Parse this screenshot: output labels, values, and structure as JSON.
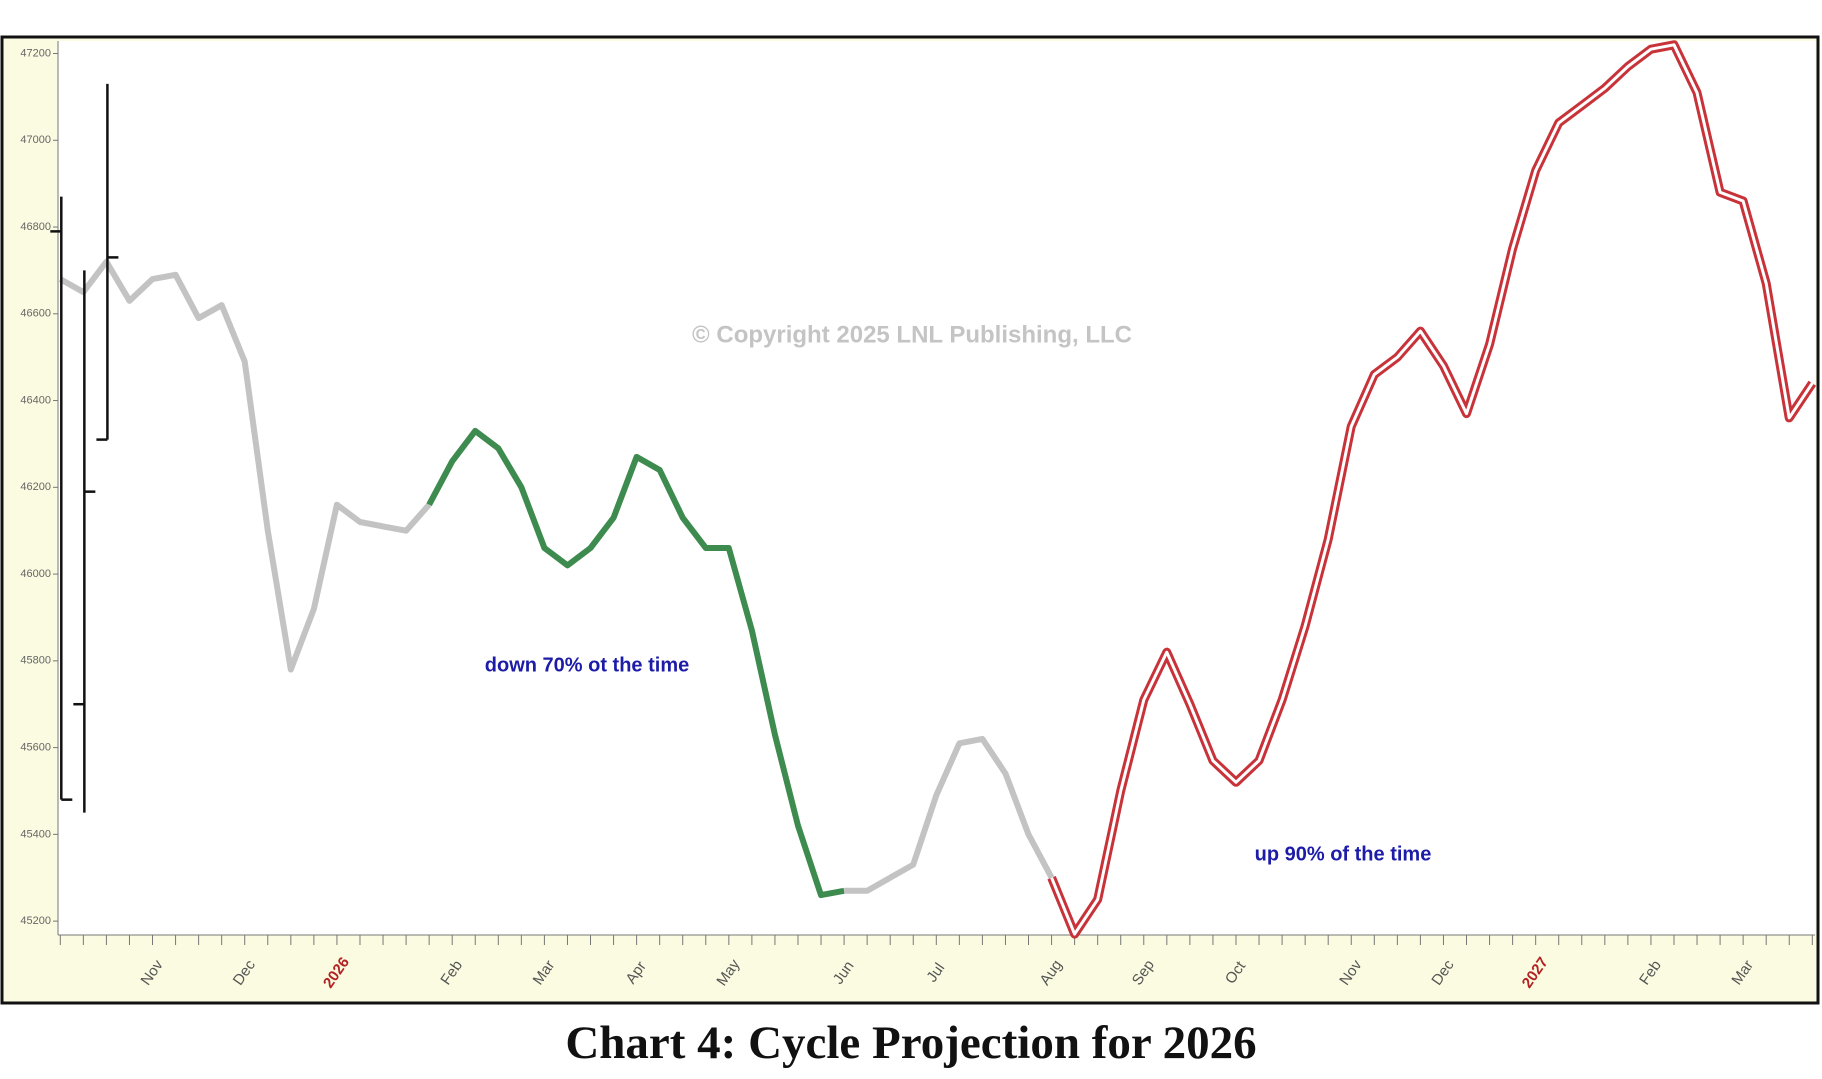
{
  "chart_data": {
    "type": "line",
    "watermark": "© Copyright 2025 LNL Publishing, LLC",
    "annotations": [
      "down 70% ot the time",
      "up 90% of the time"
    ],
    "caption": "Chart 4: Cycle Projection for 2026",
    "categories": [
      null,
      null,
      null,
      null,
      "Nov",
      null,
      null,
      null,
      "Dec",
      null,
      null,
      null,
      "2026",
      null,
      null,
      null,
      null,
      "Feb",
      null,
      null,
      null,
      "Mar",
      null,
      null,
      null,
      "Apr",
      null,
      null,
      null,
      "May",
      null,
      null,
      null,
      null,
      "Jun",
      null,
      null,
      null,
      "Jul",
      null,
      null,
      null,
      null,
      "Aug",
      null,
      null,
      null,
      "Sep",
      null,
      null,
      null,
      "Oct",
      null,
      null,
      null,
      null,
      "Nov",
      null,
      null,
      null,
      "Dec",
      null,
      null,
      null,
      "2027",
      null,
      null,
      null,
      null,
      "Feb",
      null,
      null,
      null,
      "Mar",
      null,
      null,
      null
    ],
    "series": [
      {
        "color": "#c3c3c3",
        "values": [
          46680,
          46650,
          46720,
          46630,
          46680,
          46690,
          46590,
          46620,
          46490,
          46100,
          45780,
          45920,
          46160,
          46120,
          46110,
          46100,
          46160,
          null,
          null,
          null,
          null,
          null,
          null,
          null,
          null,
          null,
          null,
          null,
          null,
          null,
          null,
          null,
          null,
          null,
          null,
          null,
          null,
          null,
          null,
          null,
          null,
          null,
          null,
          null,
          null,
          null,
          null,
          null,
          null,
          null,
          null,
          null,
          null,
          null,
          null,
          null,
          null,
          null,
          null,
          null,
          null,
          null,
          null,
          null,
          null,
          null,
          null,
          null,
          null,
          null,
          null,
          null,
          null,
          null,
          null,
          null,
          null
        ]
      },
      {
        "color": "#3d8b4e",
        "values": [
          null,
          null,
          null,
          null,
          null,
          null,
          null,
          null,
          null,
          null,
          null,
          null,
          null,
          null,
          null,
          null,
          46160,
          46260,
          46330,
          46290,
          46200,
          46060,
          46020,
          46060,
          46130,
          46270,
          46240,
          46130,
          46060,
          46060,
          45870,
          45630,
          45420,
          45260,
          45270,
          null,
          null,
          null,
          null,
          null,
          null,
          null,
          null,
          null,
          null,
          null,
          null,
          null,
          null,
          null,
          null,
          null,
          null,
          null,
          null,
          null,
          null,
          null,
          null,
          null,
          null,
          null,
          null,
          null,
          null,
          null,
          null,
          null,
          null,
          null,
          null,
          null,
          null,
          null,
          null,
          null,
          null
        ]
      },
      {
        "color": "#c3c3c3",
        "values": [
          null,
          null,
          null,
          null,
          null,
          null,
          null,
          null,
          null,
          null,
          null,
          null,
          null,
          null,
          null,
          null,
          null,
          null,
          null,
          null,
          null,
          null,
          null,
          null,
          null,
          null,
          null,
          null,
          null,
          null,
          null,
          null,
          null,
          null,
          45270,
          45270,
          45300,
          45330,
          45490,
          45610,
          45620,
          45540,
          45400,
          45300,
          null,
          null,
          null,
          null,
          null,
          null,
          null,
          null,
          null,
          null,
          null,
          null,
          null,
          null,
          null,
          null,
          null,
          null,
          null,
          null,
          null,
          null,
          null,
          null,
          null,
          null,
          null,
          null,
          null,
          null,
          null,
          null,
          null
        ]
      },
      {
        "color": "#c8333a",
        "style": "hollow",
        "values": [
          null,
          null,
          null,
          null,
          null,
          null,
          null,
          null,
          null,
          null,
          null,
          null,
          null,
          null,
          null,
          null,
          null,
          null,
          null,
          null,
          null,
          null,
          null,
          null,
          null,
          null,
          null,
          null,
          null,
          null,
          null,
          null,
          null,
          null,
          null,
          null,
          null,
          null,
          null,
          null,
          null,
          null,
          null,
          45300,
          45170,
          45250,
          45500,
          45710,
          45820,
          45700,
          45570,
          45520,
          45570,
          45710,
          45880,
          46080,
          46340,
          46460,
          46500,
          46560,
          46480,
          46370,
          46530,
          46750,
          46930,
          47040,
          47080,
          47120,
          47170,
          47210,
          47220,
          47110,
          46880,
          46860,
          46670,
          46360,
          46440
        ]
      }
    ],
    "ohlc": {
      "color": "#111111",
      "open": [
        46790,
        45700,
        46310
      ],
      "high": [
        46870,
        46700,
        47130
      ],
      "low": [
        45480,
        45450,
        46310
      ],
      "close": [
        45480,
        46190,
        46730
      ]
    },
    "ylim": [
      45168,
      47227
    ],
    "yticks": [
      45200,
      45400,
      45600,
      45800,
      46000,
      46200,
      46400,
      46600,
      46800,
      47000,
      47200
    ]
  }
}
